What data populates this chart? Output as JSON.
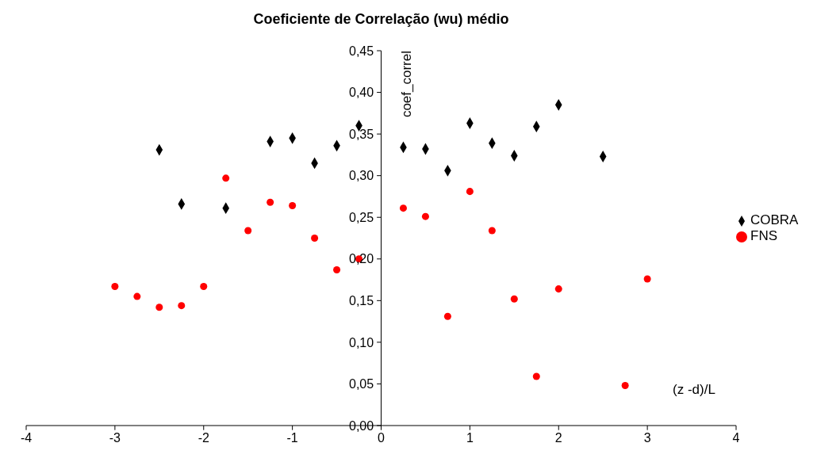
{
  "chart_data": {
    "type": "scatter",
    "title": "Coeficiente de Correlação (wu) médio",
    "xlabel": "(z -d)/L",
    "ylabel": "coef_correl",
    "xlim": [
      -4,
      4
    ],
    "xticks": [
      -4,
      -3,
      -2,
      -1,
      0,
      1,
      2,
      3,
      4
    ],
    "ylim": [
      0,
      0.45
    ],
    "yticks": [
      {
        "value": 0,
        "label": "0,00"
      },
      {
        "value": 0.05,
        "label": "0,05"
      },
      {
        "value": 0.1,
        "label": "0,10"
      },
      {
        "value": 0.15,
        "label": "0,15"
      },
      {
        "value": 0.2,
        "label": "0,20"
      },
      {
        "value": 0.25,
        "label": "0,25"
      },
      {
        "value": 0.3,
        "label": "0,30"
      },
      {
        "value": 0.35,
        "label": "0,35"
      },
      {
        "value": 0.4,
        "label": "0,40"
      },
      {
        "value": 0.45,
        "label": "0,45"
      }
    ],
    "grid": false,
    "legend": "right",
    "series": [
      {
        "name": "COBRA",
        "color": "#000000",
        "marker": "diamond",
        "x": [
          -2.5,
          -2.25,
          -1.75,
          -1.25,
          -1,
          -0.75,
          -0.5,
          -0.25,
          0.25,
          0.5,
          0.75,
          1,
          1.25,
          1.5,
          1.75,
          2,
          2.5
        ],
        "values": [
          0.331,
          0.266,
          0.261,
          0.341,
          0.345,
          0.315,
          0.336,
          0.36,
          0.334,
          0.332,
          0.306,
          0.363,
          0.339,
          0.324,
          0.359,
          0.385,
          0.323
        ]
      },
      {
        "name": "FNS",
        "color": "#ff0000",
        "marker": "circle",
        "x": [
          -3,
          -2.75,
          -2.5,
          -2.25,
          -2,
          -1.75,
          -1.5,
          -1.25,
          -1,
          -0.75,
          -0.5,
          -0.25,
          0.25,
          0.5,
          0.75,
          1,
          1.25,
          1.5,
          1.75,
          2,
          2.75,
          3
        ],
        "values": [
          0.167,
          0.155,
          0.142,
          0.144,
          0.167,
          0.297,
          0.234,
          0.268,
          0.264,
          0.225,
          0.187,
          0.2,
          0.261,
          0.251,
          0.131,
          0.281,
          0.234,
          0.152,
          0.059,
          0.164,
          0.048,
          0.176
        ]
      }
    ]
  }
}
